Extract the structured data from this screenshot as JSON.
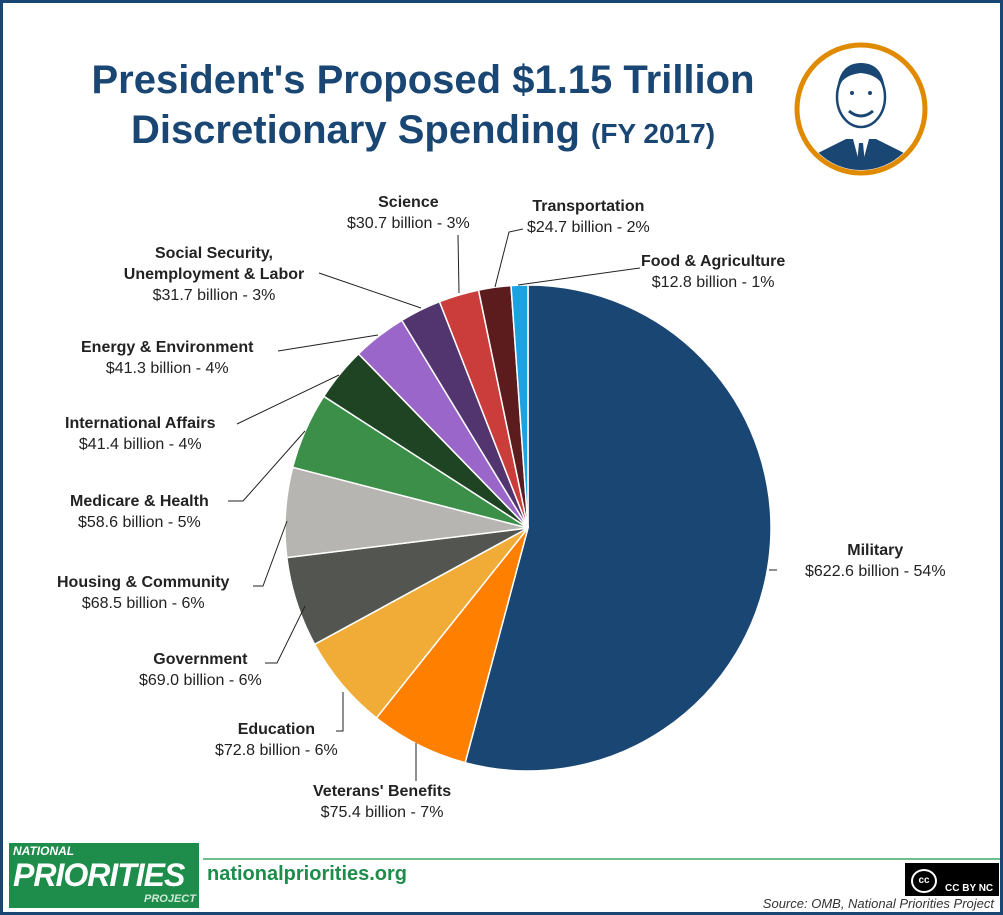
{
  "chart_data": {
    "type": "pie",
    "title": "President's Proposed $1.15 Trillion Discretionary Spending",
    "subtitle": "(FY 2017)",
    "unit": "billion",
    "start": "top, clockwise",
    "slices": [
      {
        "name": "Military",
        "value": 622.6,
        "pct": "54%",
        "label": "$622.6 billion - 54%",
        "color": "#1a4674"
      },
      {
        "name": "Veterans' Benefits",
        "value": 75.4,
        "pct": "7%",
        "label": "$75.4 billion - 7%",
        "color": "#ff7f00"
      },
      {
        "name": "Education",
        "value": 72.8,
        "pct": "6%",
        "label": "$72.8 billion - 6%",
        "color": "#f0ac37"
      },
      {
        "name": "Government",
        "value": 69.0,
        "pct": "6%",
        "label": "$69.0 billion - 6%",
        "color": "#535551"
      },
      {
        "name": "Housing & Community",
        "value": 68.5,
        "pct": "6%",
        "label": "$68.5 billion - 6%",
        "color": "#b6b5b1"
      },
      {
        "name": "Medicare & Health",
        "value": 58.6,
        "pct": "5%",
        "label": "$58.6 billion - 5%",
        "color": "#3b8f48"
      },
      {
        "name": "International Affairs",
        "value": 41.4,
        "pct": "4%",
        "label": "$41.4 billion - 4%",
        "color": "#1f4423"
      },
      {
        "name": "Energy & Environment",
        "value": 41.3,
        "pct": "4%",
        "label": "$41.3 billion - 4%",
        "color": "#9b66c9"
      },
      {
        "name": "Social Security, Unemployment & Labor",
        "value": 31.7,
        "pct": "3%",
        "label": "$31.7 billion - 3%",
        "color": "#52346e"
      },
      {
        "name": "Science",
        "value": 30.7,
        "pct": "3%",
        "label": "$30.7 billion - 3%",
        "color": "#cb3d3b"
      },
      {
        "name": "Transportation",
        "value": 24.7,
        "pct": "2%",
        "label": "$24.7 billion - 2%",
        "color": "#5c1c1e"
      },
      {
        "name": "Food & Agriculture",
        "value": 12.8,
        "pct": "1%",
        "label": "$12.8 billion - 1%",
        "color": "#1aa3e0"
      }
    ]
  },
  "title_line1": "President's Proposed $1.15 Trillion",
  "title_line2": "Discretionary Spending",
  "title_sub": "(FY 2017)",
  "footer": {
    "logo_text": "NATIONAL PRIORITIES PROJECT",
    "site": "nationalpriorities.org",
    "license": "CC BY NC",
    "source": "Source: OMB, National Priorities Project"
  },
  "colors": {
    "brand": "#1a4674",
    "accent_ring": "#e08a00",
    "footer_green": "#1e8c4a"
  }
}
